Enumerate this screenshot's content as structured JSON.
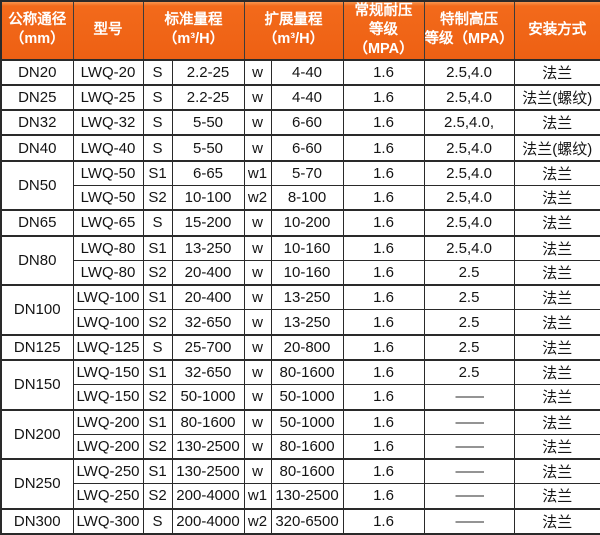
{
  "colors": {
    "header_bg": "#f26a1b",
    "header_bg_highlight": "#f7954e",
    "header_text": "#ffffff",
    "grid_border": "#2a2a2a",
    "cell_text": "#141414",
    "cell_bg": "#ffffff"
  },
  "table": {
    "header": {
      "nominal_diameter": [
        "公称通径",
        "（mm）"
      ],
      "model": [
        "型号"
      ],
      "standard_range": [
        "标准量程",
        "（m³/H）"
      ],
      "extended_range": [
        "扩展量程",
        "（m³/H）"
      ],
      "normal_pressure": [
        "常规耐压",
        "等级（MPA）"
      ],
      "special_pressure": [
        "特制高压",
        "等级（MPA）"
      ],
      "installation": [
        "安装方式"
      ]
    },
    "groups": [
      {
        "dn": "DN20",
        "rows": [
          {
            "model": "LWQ-20",
            "std_code": "S",
            "std_range": "2.2-25",
            "ext_code": "w",
            "ext_range": "4-40",
            "normal_mpa": "1.6",
            "special_mpa": "2.5,4.0",
            "install": "法兰"
          }
        ]
      },
      {
        "dn": "DN25",
        "rows": [
          {
            "model": "LWQ-25",
            "std_code": "S",
            "std_range": "2.2-25",
            "ext_code": "w",
            "ext_range": "4-40",
            "normal_mpa": "1.6",
            "special_mpa": "2.5,4.0",
            "install": "法兰(螺纹)"
          }
        ]
      },
      {
        "dn": "DN32",
        "rows": [
          {
            "model": "LWQ-32",
            "std_code": "S",
            "std_range": "5-50",
            "ext_code": "w",
            "ext_range": "6-60",
            "normal_mpa": "1.6",
            "special_mpa": "2.5,4.0,",
            "install": "法兰"
          }
        ]
      },
      {
        "dn": "DN40",
        "rows": [
          {
            "model": "LWQ-40",
            "std_code": "S",
            "std_range": "5-50",
            "ext_code": "w",
            "ext_range": "6-60",
            "normal_mpa": "1.6",
            "special_mpa": "2.5,4.0",
            "install": "法兰(螺纹)"
          }
        ]
      },
      {
        "dn": "DN50",
        "rows": [
          {
            "model": "LWQ-50",
            "std_code": "S1",
            "std_range": "6-65",
            "ext_code": "w1",
            "ext_range": "5-70",
            "normal_mpa": "1.6",
            "special_mpa": "2.5,4.0",
            "install": "法兰"
          },
          {
            "model": "LWQ-50",
            "std_code": "S2",
            "std_range": "10-100",
            "ext_code": "w2",
            "ext_range": "8-100",
            "normal_mpa": "1.6",
            "special_mpa": "2.5,4.0",
            "install": "法兰"
          }
        ]
      },
      {
        "dn": "DN65",
        "rows": [
          {
            "model": "LWQ-65",
            "std_code": "S",
            "std_range": "15-200",
            "ext_code": "w",
            "ext_range": "10-200",
            "normal_mpa": "1.6",
            "special_mpa": "2.5,4.0",
            "install": "法兰"
          }
        ]
      },
      {
        "dn": "DN80",
        "rows": [
          {
            "model": "LWQ-80",
            "std_code": "S1",
            "std_range": "13-250",
            "ext_code": "w",
            "ext_range": "10-160",
            "normal_mpa": "1.6",
            "special_mpa": "2.5,4.0",
            "install": "法兰"
          },
          {
            "model": "LWQ-80",
            "std_code": "S2",
            "std_range": "20-400",
            "ext_code": "w",
            "ext_range": "10-160",
            "normal_mpa": "1.6",
            "special_mpa": "2.5",
            "install": "法兰"
          }
        ]
      },
      {
        "dn": "DN100",
        "rows": [
          {
            "model": "LWQ-100",
            "std_code": "S1",
            "std_range": "20-400",
            "ext_code": "w",
            "ext_range": "13-250",
            "normal_mpa": "1.6",
            "special_mpa": "2.5",
            "install": "法兰"
          },
          {
            "model": "LWQ-100",
            "std_code": "S2",
            "std_range": "32-650",
            "ext_code": "w",
            "ext_range": "13-250",
            "normal_mpa": "1.6",
            "special_mpa": "2.5",
            "install": "法兰"
          }
        ]
      },
      {
        "dn": "DN125",
        "rows": [
          {
            "model": "LWQ-125",
            "std_code": "S",
            "std_range": "25-700",
            "ext_code": "w",
            "ext_range": "20-800",
            "normal_mpa": "1.6",
            "special_mpa": "2.5",
            "install": "法兰"
          }
        ]
      },
      {
        "dn": "DN150",
        "rows": [
          {
            "model": "LWQ-150",
            "std_code": "S1",
            "std_range": "32-650",
            "ext_code": "w",
            "ext_range": "80-1600",
            "normal_mpa": "1.6",
            "special_mpa": "2.5",
            "install": "法兰"
          },
          {
            "model": "LWQ-150",
            "std_code": "S2",
            "std_range": "50-1000",
            "ext_code": "w",
            "ext_range": "50-1000",
            "normal_mpa": "1.6",
            "special_mpa": "——",
            "install": "法兰"
          }
        ]
      },
      {
        "dn": "DN200",
        "rows": [
          {
            "model": "LWQ-200",
            "std_code": "S1",
            "std_range": "80-1600",
            "ext_code": "w",
            "ext_range": "50-1000",
            "normal_mpa": "1.6",
            "special_mpa": "——",
            "install": "法兰"
          },
          {
            "model": "LWQ-200",
            "std_code": "S2",
            "std_range": "130-2500",
            "ext_code": "w",
            "ext_range": "80-1600",
            "normal_mpa": "1.6",
            "special_mpa": "——",
            "install": "法兰"
          }
        ]
      },
      {
        "dn": "DN250",
        "rows": [
          {
            "model": "LWQ-250",
            "std_code": "S1",
            "std_range": "130-2500",
            "ext_code": "w",
            "ext_range": "80-1600",
            "normal_mpa": "1.6",
            "special_mpa": "——",
            "install": "法兰"
          },
          {
            "model": "LWQ-250",
            "std_code": "S2",
            "std_range": "200-4000",
            "ext_code": "w1",
            "ext_range": "130-2500",
            "normal_mpa": "1.6",
            "special_mpa": "——",
            "install": "法兰"
          }
        ]
      },
      {
        "dn": "DN300",
        "rows": [
          {
            "model": "LWQ-300",
            "std_code": "S",
            "std_range": "200-4000",
            "ext_code": "w2",
            "ext_range": "320-6500",
            "normal_mpa": "1.6",
            "special_mpa": "——",
            "install": "法兰"
          }
        ]
      }
    ]
  }
}
